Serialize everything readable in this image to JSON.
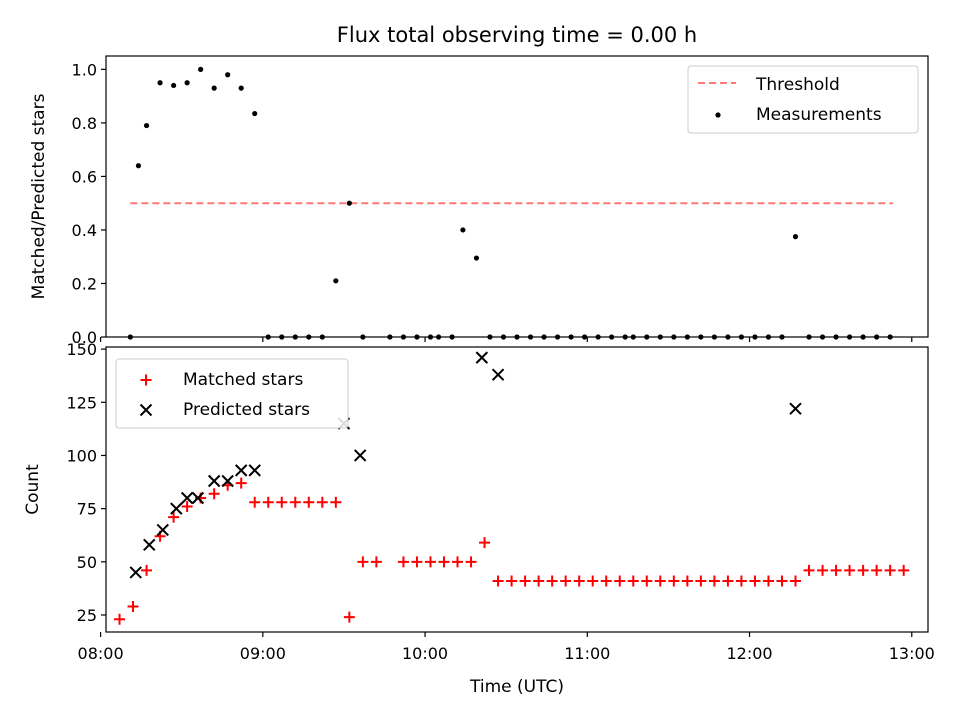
{
  "chart_data": [
    {
      "type": "scatter",
      "title": "Flux total observing time = 0.00 h",
      "xlabel": "",
      "ylabel": "Matched/Predicted stars",
      "xlim": [
        "08:02",
        "13:06"
      ],
      "ylim": [
        0,
        1.05
      ],
      "yticks": [
        "0.0",
        "0.2",
        "0.4",
        "0.6",
        "0.8",
        "1.0"
      ],
      "legend": {
        "placement": "upper right",
        "entries": [
          "Threshold",
          "Measurements"
        ]
      },
      "threshold": {
        "name": "Threshold",
        "value": 0.5,
        "x_start": "08:11",
        "x_end": "12:53",
        "color": "#ff7777",
        "style": "dashed"
      },
      "series": [
        {
          "name": "Measurements",
          "color": "#000000",
          "points": [
            [
              "08:11",
              0.0
            ],
            [
              "08:14",
              0.64
            ],
            [
              "08:17",
              0.79
            ],
            [
              "08:22",
              0.95
            ],
            [
              "08:27",
              0.94
            ],
            [
              "08:32",
              0.95
            ],
            [
              "08:37",
              1.0
            ],
            [
              "08:42",
              0.93
            ],
            [
              "08:47",
              0.98
            ],
            [
              "08:52",
              0.93
            ],
            [
              "08:57",
              0.835
            ],
            [
              "09:02",
              0.0
            ],
            [
              "09:07",
              0.0
            ],
            [
              "09:12",
              0.0
            ],
            [
              "09:17",
              0.0
            ],
            [
              "09:22",
              0.0
            ],
            [
              "09:27",
              0.21
            ],
            [
              "09:32",
              0.5
            ],
            [
              "09:37",
              0.0
            ],
            [
              "09:47",
              0.0
            ],
            [
              "09:52",
              0.0
            ],
            [
              "09:57",
              0.0
            ],
            [
              "10:02",
              0.0
            ],
            [
              "10:05",
              0.0
            ],
            [
              "10:10",
              0.0
            ],
            [
              "10:14",
              0.4
            ],
            [
              "10:19",
              0.295
            ],
            [
              "10:24",
              0.0
            ],
            [
              "10:29",
              0.0
            ],
            [
              "10:34",
              0.0
            ],
            [
              "10:39",
              0.0
            ],
            [
              "10:44",
              0.0
            ],
            [
              "10:49",
              0.0
            ],
            [
              "10:54",
              0.0
            ],
            [
              "10:59",
              0.0
            ],
            [
              "11:04",
              0.0
            ],
            [
              "11:09",
              0.0
            ],
            [
              "11:14",
              0.0
            ],
            [
              "11:17",
              0.0
            ],
            [
              "11:22",
              0.0
            ],
            [
              "11:27",
              0.0
            ],
            [
              "11:32",
              0.0
            ],
            [
              "11:37",
              0.0
            ],
            [
              "11:42",
              0.0
            ],
            [
              "11:47",
              0.0
            ],
            [
              "11:52",
              0.0
            ],
            [
              "11:57",
              0.0
            ],
            [
              "12:02",
              0.0
            ],
            [
              "12:07",
              0.0
            ],
            [
              "12:12",
              0.0
            ],
            [
              "12:17",
              0.375
            ],
            [
              "12:22",
              0.0
            ],
            [
              "12:27",
              0.0
            ],
            [
              "12:32",
              0.0
            ],
            [
              "12:37",
              0.0
            ],
            [
              "12:42",
              0.0
            ],
            [
              "12:47",
              0.0
            ],
            [
              "12:52",
              0.0
            ]
          ]
        }
      ]
    },
    {
      "type": "scatter",
      "title": "",
      "xlabel": "Time (UTC)",
      "ylabel": "Count",
      "xlim": [
        "08:02",
        "13:06"
      ],
      "ylim": [
        17,
        151
      ],
      "xticks": [
        "08:00",
        "09:00",
        "10:00",
        "11:00",
        "12:00",
        "13:00"
      ],
      "yticks": [
        "25",
        "50",
        "75",
        "100",
        "125",
        "150"
      ],
      "legend": {
        "placement": "upper left",
        "entries": [
          "Matched stars",
          "Predicted stars"
        ]
      },
      "series": [
        {
          "name": "Matched stars",
          "marker": "plus",
          "color": "#ff0000",
          "points": [
            [
              "08:07",
              23
            ],
            [
              "08:12",
              29
            ],
            [
              "08:17",
              46
            ],
            [
              "08:22",
              62
            ],
            [
              "08:27",
              71
            ],
            [
              "08:32",
              76
            ],
            [
              "08:37",
              80
            ],
            [
              "08:42",
              82
            ],
            [
              "08:47",
              86
            ],
            [
              "08:52",
              87
            ],
            [
              "08:57",
              78
            ],
            [
              "09:02",
              78
            ],
            [
              "09:07",
              78
            ],
            [
              "09:12",
              78
            ],
            [
              "09:17",
              78
            ],
            [
              "09:22",
              78
            ],
            [
              "09:27",
              78
            ],
            [
              "09:32",
              24
            ],
            [
              "09:37",
              50
            ],
            [
              "09:42",
              50
            ],
            [
              "09:52",
              50
            ],
            [
              "09:57",
              50
            ],
            [
              "10:02",
              50
            ],
            [
              "10:07",
              50
            ],
            [
              "10:12",
              50
            ],
            [
              "10:17",
              50
            ],
            [
              "10:22",
              59
            ],
            [
              "10:27",
              41
            ],
            [
              "10:32",
              41
            ],
            [
              "10:37",
              41
            ],
            [
              "10:42",
              41
            ],
            [
              "10:47",
              41
            ],
            [
              "10:52",
              41
            ],
            [
              "10:57",
              41
            ],
            [
              "11:02",
              41
            ],
            [
              "11:07",
              41
            ],
            [
              "11:12",
              41
            ],
            [
              "11:17",
              41
            ],
            [
              "11:22",
              41
            ],
            [
              "11:27",
              41
            ],
            [
              "11:32",
              41
            ],
            [
              "11:37",
              41
            ],
            [
              "11:42",
              41
            ],
            [
              "11:47",
              41
            ],
            [
              "11:52",
              41
            ],
            [
              "11:57",
              41
            ],
            [
              "12:02",
              41
            ],
            [
              "12:07",
              41
            ],
            [
              "12:12",
              41
            ],
            [
              "12:17",
              41
            ],
            [
              "12:22",
              46
            ],
            [
              "12:27",
              46
            ],
            [
              "12:32",
              46
            ],
            [
              "12:37",
              46
            ],
            [
              "12:42",
              46
            ],
            [
              "12:47",
              46
            ],
            [
              "12:52",
              46
            ],
            [
              "12:57",
              46
            ]
          ]
        },
        {
          "name": "Predicted stars",
          "marker": "x",
          "color": "#000000",
          "points": [
            [
              "08:13",
              45
            ],
            [
              "08:18",
              58
            ],
            [
              "08:23",
              65
            ],
            [
              "08:28",
              75
            ],
            [
              "08:32",
              80
            ],
            [
              "08:36",
              80
            ],
            [
              "08:42",
              88
            ],
            [
              "08:47",
              88
            ],
            [
              "08:52",
              93
            ],
            [
              "08:57",
              93
            ],
            [
              "09:30",
              115
            ],
            [
              "09:36",
              100
            ],
            [
              "10:21",
              146
            ],
            [
              "10:27",
              138
            ],
            [
              "12:17",
              122
            ]
          ]
        }
      ]
    }
  ]
}
